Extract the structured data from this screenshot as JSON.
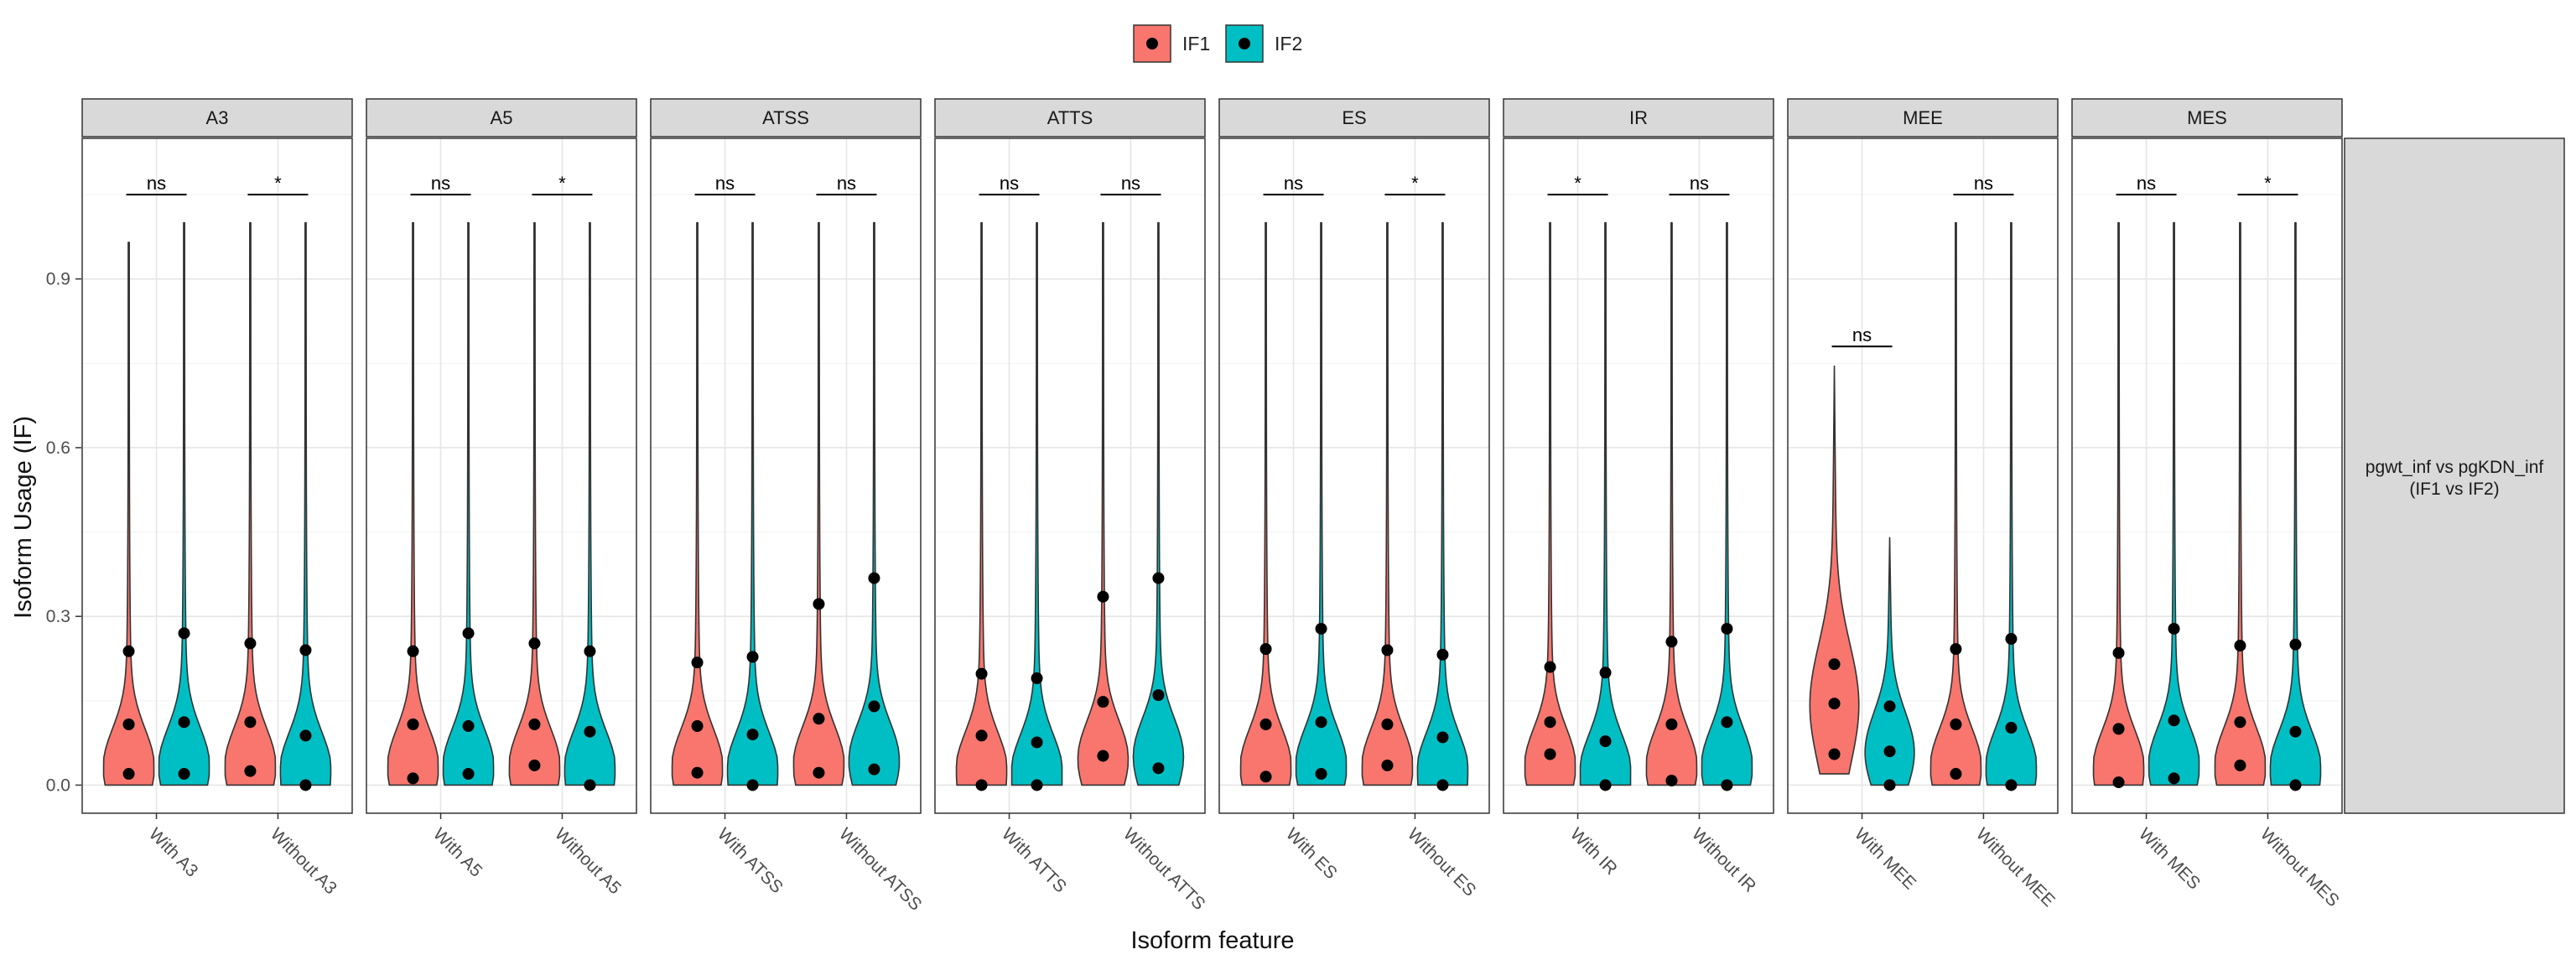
{
  "legend": {
    "items": [
      {
        "label": "IF1",
        "color": "#F8766D"
      },
      {
        "label": "IF2",
        "color": "#00BFC4"
      }
    ],
    "placement": "top-center"
  },
  "axis": {
    "ylabel": "Isoform Usage (IF)",
    "xlabel": "Isoform feature"
  },
  "strip_right": {
    "line1": "pgwt_inf vs pgKDN_inf",
    "line2": "(IF1 vs IF2)"
  },
  "chart_data": {
    "type": "violin",
    "ylim": [
      -0.05,
      1.15
    ],
    "yticks": [
      0.0,
      0.3,
      0.6,
      0.9
    ],
    "ytick_labels": [
      "0.0",
      "0.3",
      "0.6",
      "0.9"
    ],
    "grid": true,
    "series": [
      {
        "name": "IF1",
        "color": "#F8766D"
      },
      {
        "name": "IF2",
        "color": "#00BFC4"
      }
    ],
    "panels": [
      {
        "title": "A3",
        "groups": [
          {
            "label": "With A3",
            "sig": "ns",
            "bracket_y": 1.05,
            "violins": [
              {
                "min": 0.0,
                "max": 0.965,
                "q": [
                  0.02,
                  0.108,
                  0.238
                ]
              },
              {
                "min": 0.0,
                "max": 1.0,
                "q": [
                  0.02,
                  0.112,
                  0.27
                ]
              }
            ]
          },
          {
            "label": "Without A3",
            "sig": "*",
            "bracket_y": 1.05,
            "violins": [
              {
                "min": 0.0,
                "max": 1.0,
                "q": [
                  0.025,
                  0.112,
                  0.252
                ]
              },
              {
                "min": 0.0,
                "max": 1.0,
                "q": [
                  0.0,
                  0.088,
                  0.24
                ]
              }
            ]
          }
        ]
      },
      {
        "title": "A5",
        "groups": [
          {
            "label": "With A5",
            "sig": "ns",
            "bracket_y": 1.05,
            "violins": [
              {
                "min": 0.0,
                "max": 1.0,
                "q": [
                  0.012,
                  0.108,
                  0.238
                ]
              },
              {
                "min": 0.0,
                "max": 1.0,
                "q": [
                  0.02,
                  0.105,
                  0.27
                ]
              }
            ]
          },
          {
            "label": "Without A5",
            "sig": "*",
            "bracket_y": 1.05,
            "violins": [
              {
                "min": 0.0,
                "max": 1.0,
                "q": [
                  0.035,
                  0.108,
                  0.252
                ]
              },
              {
                "min": 0.0,
                "max": 1.0,
                "q": [
                  0.0,
                  0.095,
                  0.238
                ]
              }
            ]
          }
        ]
      },
      {
        "title": "ATSS",
        "groups": [
          {
            "label": "With ATSS",
            "sig": "ns",
            "bracket_y": 1.05,
            "violins": [
              {
                "min": 0.0,
                "max": 1.0,
                "q": [
                  0.022,
                  0.105,
                  0.218
                ]
              },
              {
                "min": 0.0,
                "max": 1.0,
                "q": [
                  0.0,
                  0.09,
                  0.228
                ]
              }
            ]
          },
          {
            "label": "Without ATSS",
            "sig": "ns",
            "bracket_y": 1.05,
            "violins": [
              {
                "min": 0.0,
                "max": 1.0,
                "q": [
                  0.022,
                  0.118,
                  0.322
                ]
              },
              {
                "min": 0.0,
                "max": 1.0,
                "q": [
                  0.028,
                  0.14,
                  0.368
                ]
              }
            ]
          }
        ]
      },
      {
        "title": "ATTS",
        "groups": [
          {
            "label": "With ATTS",
            "sig": "ns",
            "bracket_y": 1.05,
            "violins": [
              {
                "min": 0.0,
                "max": 1.0,
                "q": [
                  0.0,
                  0.088,
                  0.198
                ]
              },
              {
                "min": 0.0,
                "max": 1.0,
                "q": [
                  0.0,
                  0.076,
                  0.19
                ]
              }
            ]
          },
          {
            "label": "Without ATTS",
            "sig": "ns",
            "bracket_y": 1.05,
            "violins": [
              {
                "min": 0.0,
                "max": 1.0,
                "q": [
                  0.052,
                  0.148,
                  0.335
                ]
              },
              {
                "min": 0.0,
                "max": 1.0,
                "q": [
                  0.03,
                  0.16,
                  0.368
                ]
              }
            ]
          }
        ]
      },
      {
        "title": "ES",
        "groups": [
          {
            "label": "With ES",
            "sig": "ns",
            "bracket_y": 1.05,
            "violins": [
              {
                "min": 0.0,
                "max": 1.0,
                "q": [
                  0.015,
                  0.108,
                  0.242
                ]
              },
              {
                "min": 0.0,
                "max": 1.0,
                "q": [
                  0.02,
                  0.112,
                  0.278
                ]
              }
            ]
          },
          {
            "label": "Without ES",
            "sig": "*",
            "bracket_y": 1.05,
            "violins": [
              {
                "min": 0.0,
                "max": 1.0,
                "q": [
                  0.035,
                  0.108,
                  0.24
                ]
              },
              {
                "min": 0.0,
                "max": 1.0,
                "q": [
                  0.0,
                  0.085,
                  0.232
                ]
              }
            ]
          }
        ]
      },
      {
        "title": "IR",
        "groups": [
          {
            "label": "With IR",
            "sig": "*",
            "bracket_y": 1.05,
            "violins": [
              {
                "min": 0.0,
                "max": 1.0,
                "q": [
                  0.055,
                  0.112,
                  0.21
                ]
              },
              {
                "min": 0.0,
                "max": 1.0,
                "q": [
                  0.0,
                  0.078,
                  0.2
                ]
              }
            ]
          },
          {
            "label": "Without IR",
            "sig": "ns",
            "bracket_y": 1.05,
            "violins": [
              {
                "min": 0.0,
                "max": 1.0,
                "q": [
                  0.008,
                  0.108,
                  0.255
                ]
              },
              {
                "min": 0.0,
                "max": 1.0,
                "q": [
                  0.0,
                  0.112,
                  0.278
                ]
              }
            ]
          }
        ]
      },
      {
        "title": "MEE",
        "groups": [
          {
            "label": "With MEE",
            "sig": "ns",
            "bracket_y": 0.78,
            "violins": [
              {
                "min": 0.02,
                "max": 0.745,
                "q": [
                  0.055,
                  0.145,
                  0.215
                ]
              },
              {
                "min": 0.0,
                "max": 0.44,
                "q": [
                  0.0,
                  0.06,
                  0.14
                ]
              }
            ]
          },
          {
            "label": "Without MEE",
            "sig": "ns",
            "bracket_y": 1.05,
            "violins": [
              {
                "min": 0.0,
                "max": 1.0,
                "q": [
                  0.02,
                  0.108,
                  0.242
                ]
              },
              {
                "min": 0.0,
                "max": 1.0,
                "q": [
                  0.0,
                  0.102,
                  0.26
                ]
              }
            ]
          }
        ]
      },
      {
        "title": "MES",
        "groups": [
          {
            "label": "With MES",
            "sig": "ns",
            "bracket_y": 1.05,
            "violins": [
              {
                "min": 0.0,
                "max": 1.0,
                "q": [
                  0.005,
                  0.1,
                  0.235
                ]
              },
              {
                "min": 0.0,
                "max": 1.0,
                "q": [
                  0.012,
                  0.115,
                  0.278
                ]
              }
            ]
          },
          {
            "label": "Without MES",
            "sig": "*",
            "bracket_y": 1.05,
            "violins": [
              {
                "min": 0.0,
                "max": 1.0,
                "q": [
                  0.035,
                  0.112,
                  0.248
                ]
              },
              {
                "min": 0.0,
                "max": 1.0,
                "q": [
                  0.0,
                  0.095,
                  0.25
                ]
              }
            ]
          }
        ]
      }
    ]
  }
}
